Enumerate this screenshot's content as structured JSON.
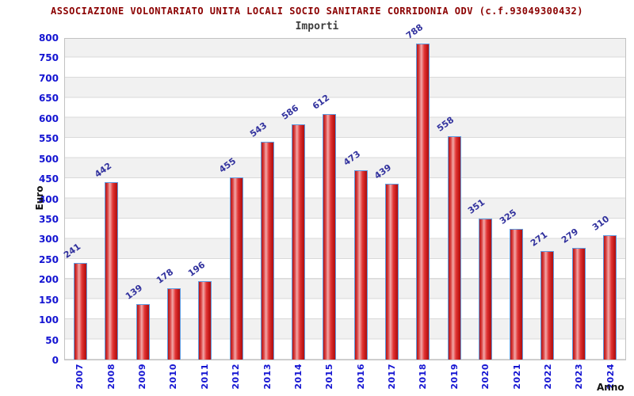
{
  "header": {
    "title": "ASSOCIAZIONE VOLONTARIATO UNITA LOCALI SOCIO SANITARIE CORRIDONIA ODV (c.f.93049300432)",
    "subtitle": "Importi"
  },
  "chart_data": {
    "type": "bar",
    "title": "Importi",
    "xlabel": "Anno",
    "ylabel": "Euro",
    "categories": [
      "2007",
      "2008",
      "2009",
      "2010",
      "2011",
      "2012",
      "2013",
      "2014",
      "2015",
      "2016",
      "2017",
      "2018",
      "2019",
      "2020",
      "2021",
      "2022",
      "2023",
      "2024"
    ],
    "values": [
      241,
      442,
      139,
      178,
      196,
      455,
      543,
      586,
      612,
      473,
      439,
      788,
      558,
      351,
      325,
      271,
      279,
      310
    ],
    "ylim": [
      0,
      800
    ],
    "ytick_step": 50,
    "yticks": [
      0,
      50,
      100,
      150,
      200,
      250,
      300,
      350,
      400,
      450,
      500,
      550,
      600,
      650,
      700,
      750,
      800
    ],
    "grid": true,
    "legend": false,
    "band_fill_alternate": true,
    "colors": {
      "title": "#8b0000",
      "subtitle": "#3d3d3d",
      "bar_fill": "#d92525",
      "bar_border": "#5e9be0",
      "value_label": "#32329e",
      "axis_tick_text": "#1414d2",
      "axis_title_text": "#111111",
      "band_gray": "#f1f1f1",
      "gridline": "#d9d9d9",
      "plot_border": "#c2c2c2"
    }
  }
}
